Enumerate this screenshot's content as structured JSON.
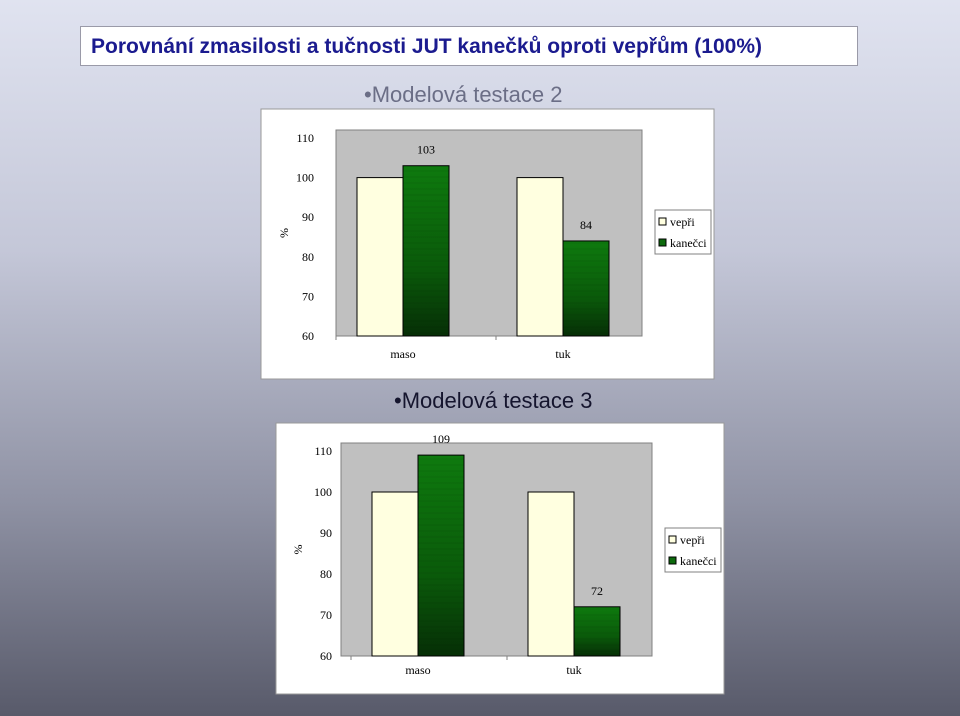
{
  "slide_title": "Porovnání zmasilosti a tučnosti JUT kanečků oproti vepřům (100%)",
  "chart_data": [
    {
      "type": "bar",
      "title": "•Modelová testace 2",
      "categories": [
        "maso",
        "tuk"
      ],
      "series": [
        {
          "name": "vepři",
          "values": [
            100,
            100
          ]
        },
        {
          "name": "kanečci",
          "values": [
            103,
            84
          ]
        }
      ],
      "data_labels": [
        "103",
        "84"
      ],
      "ylabel": "%",
      "yticks": [
        "60",
        "70",
        "80",
        "90",
        "100",
        "110"
      ],
      "ylim": [
        60,
        110
      ],
      "grid": false,
      "legend": "right",
      "colors": {
        "vepri": "#ffffe0",
        "kanecci": "#0d6a0d",
        "plot_bg": "#c0c0c0"
      }
    },
    {
      "type": "bar",
      "title": "•Modelová testace 3",
      "categories": [
        "maso",
        "tuk"
      ],
      "series": [
        {
          "name": "vepři",
          "values": [
            100,
            100
          ]
        },
        {
          "name": "kanečci",
          "values": [
            109,
            72
          ]
        }
      ],
      "data_labels": [
        "109",
        "72"
      ],
      "ylabel": "%",
      "yticks": [
        "60",
        "70",
        "80",
        "90",
        "100",
        "110"
      ],
      "ylim": [
        60,
        110
      ],
      "grid": false,
      "legend": "right",
      "colors": {
        "vepri": "#ffffe0",
        "kanecci": "#0d6a0d",
        "plot_bg": "#c0c0c0"
      }
    }
  ]
}
